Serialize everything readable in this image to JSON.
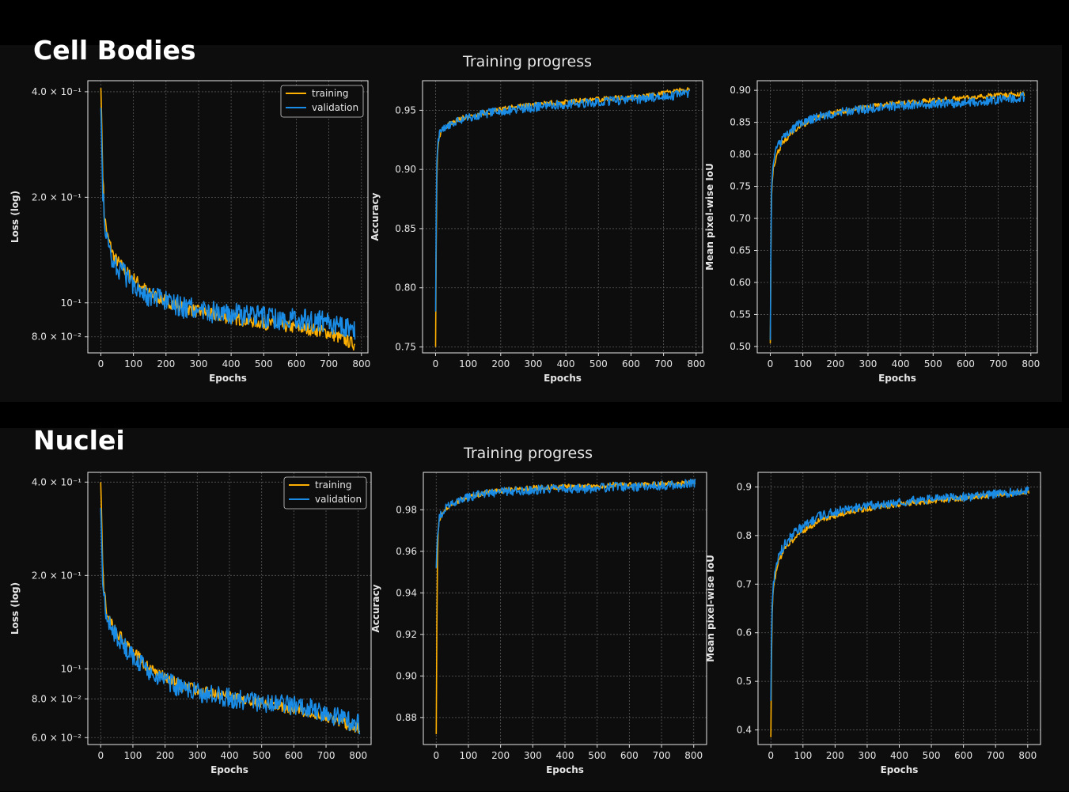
{
  "sections": [
    {
      "id": "cell",
      "heading": "Cell Bodies",
      "figure_title": "Training progress",
      "legend": {
        "training": "training",
        "validation": "validation"
      }
    },
    {
      "id": "nuc",
      "heading": "Nuclei",
      "figure_title": "Training progress",
      "legend": {
        "training": "training",
        "validation": "validation"
      }
    }
  ],
  "colors": {
    "training": "#ffb000",
    "validation": "#1a8ce6",
    "background": "#0d0d0d",
    "grid": "#5a5a5a"
  },
  "chart_data": [
    {
      "type": "line",
      "scale": "log",
      "xlabel": "Epochs",
      "ylabel": "Loss (log)",
      "xlim": [
        -40,
        820
      ],
      "ylim": [
        0.072,
        0.43
      ],
      "xticks": [
        0,
        100,
        200,
        300,
        400,
        500,
        600,
        700,
        800
      ],
      "yticks": [
        {
          "v": 0.4,
          "label": "4.0 × 10⁻¹"
        },
        {
          "v": 0.2,
          "label": "2.0 × 10⁻¹"
        },
        {
          "v": 0.1,
          "label": "10⁻¹"
        },
        {
          "v": 0.08,
          "label": "8.0 × 10⁻²"
        }
      ],
      "legend": "top-right",
      "grid": true,
      "series": [
        {
          "name": "training",
          "x": [
            0,
            5,
            10,
            20,
            40,
            80,
            150,
            250,
            350,
            450,
            550,
            650,
            700,
            780
          ],
          "y": [
            0.41,
            0.25,
            0.18,
            0.155,
            0.135,
            0.122,
            0.106,
            0.097,
            0.092,
            0.089,
            0.086,
            0.084,
            0.082,
            0.076
          ]
        },
        {
          "name": "validation",
          "x": [
            0,
            5,
            10,
            20,
            40,
            80,
            150,
            250,
            350,
            450,
            550,
            650,
            700,
            780
          ],
          "y": [
            0.36,
            0.22,
            0.17,
            0.148,
            0.13,
            0.118,
            0.104,
            0.097,
            0.094,
            0.092,
            0.09,
            0.089,
            0.088,
            0.084
          ]
        }
      ]
    },
    {
      "type": "line",
      "xlabel": "Epochs",
      "ylabel": "Accuracy",
      "xlim": [
        -40,
        820
      ],
      "ylim": [
        0.745,
        0.975
      ],
      "xticks": [
        0,
        100,
        200,
        300,
        400,
        500,
        600,
        700,
        800
      ],
      "yticks": [
        {
          "v": 0.75,
          "label": "0.75"
        },
        {
          "v": 0.8,
          "label": "0.80"
        },
        {
          "v": 0.85,
          "label": "0.85"
        },
        {
          "v": 0.9,
          "label": "0.90"
        },
        {
          "v": 0.95,
          "label": "0.95"
        }
      ],
      "grid": true,
      "series": [
        {
          "name": "training",
          "x": [
            0,
            3,
            6,
            10,
            20,
            40,
            80,
            150,
            250,
            350,
            450,
            550,
            650,
            780
          ],
          "y": [
            0.75,
            0.88,
            0.915,
            0.925,
            0.933,
            0.938,
            0.943,
            0.948,
            0.953,
            0.956,
            0.958,
            0.96,
            0.962,
            0.968
          ]
        },
        {
          "name": "validation",
          "x": [
            0,
            3,
            6,
            10,
            20,
            40,
            80,
            150,
            250,
            350,
            450,
            550,
            650,
            780
          ],
          "y": [
            0.78,
            0.9,
            0.92,
            0.928,
            0.934,
            0.938,
            0.942,
            0.947,
            0.951,
            0.954,
            0.956,
            0.958,
            0.96,
            0.964
          ]
        }
      ]
    },
    {
      "type": "line",
      "xlabel": "Epochs",
      "ylabel": "Mean pixel-wise IoU",
      "xlim": [
        -40,
        820
      ],
      "ylim": [
        0.49,
        0.915
      ],
      "xticks": [
        0,
        100,
        200,
        300,
        400,
        500,
        600,
        700,
        800
      ],
      "yticks": [
        {
          "v": 0.5,
          "label": "0.50"
        },
        {
          "v": 0.55,
          "label": "0.55"
        },
        {
          "v": 0.6,
          "label": "0.60"
        },
        {
          "v": 0.65,
          "label": "0.65"
        },
        {
          "v": 0.7,
          "label": "0.70"
        },
        {
          "v": 0.75,
          "label": "0.75"
        },
        {
          "v": 0.8,
          "label": "0.80"
        },
        {
          "v": 0.85,
          "label": "0.85"
        },
        {
          "v": 0.9,
          "label": "0.90"
        }
      ],
      "grid": true,
      "series": [
        {
          "name": "training",
          "x": [
            0,
            3,
            6,
            10,
            20,
            40,
            80,
            150,
            250,
            350,
            450,
            550,
            650,
            780
          ],
          "y": [
            0.505,
            0.72,
            0.76,
            0.78,
            0.8,
            0.82,
            0.84,
            0.86,
            0.87,
            0.878,
            0.882,
            0.886,
            0.89,
            0.895
          ]
        },
        {
          "name": "validation",
          "x": [
            0,
            3,
            6,
            10,
            20,
            40,
            80,
            150,
            250,
            350,
            450,
            550,
            650,
            780
          ],
          "y": [
            0.51,
            0.73,
            0.77,
            0.79,
            0.81,
            0.825,
            0.845,
            0.86,
            0.868,
            0.874,
            0.878,
            0.88,
            0.882,
            0.89
          ]
        }
      ]
    },
    {
      "type": "line",
      "scale": "log",
      "xlabel": "Epochs",
      "ylabel": "Loss (log)",
      "xlim": [
        -40,
        840
      ],
      "ylim": [
        0.057,
        0.43
      ],
      "xticks": [
        0,
        100,
        200,
        300,
        400,
        500,
        600,
        700,
        800
      ],
      "yticks": [
        {
          "v": 0.4,
          "label": "4.0 × 10⁻¹"
        },
        {
          "v": 0.2,
          "label": "2.0 × 10⁻¹"
        },
        {
          "v": 0.1,
          "label": "10⁻¹"
        },
        {
          "v": 0.08,
          "label": "8.0 × 10⁻²"
        },
        {
          "v": 0.06,
          "label": "6.0 × 10⁻²"
        }
      ],
      "legend": "top-right",
      "grid": true,
      "series": [
        {
          "name": "training",
          "x": [
            0,
            5,
            10,
            20,
            40,
            80,
            150,
            250,
            350,
            450,
            550,
            650,
            700,
            805
          ],
          "y": [
            0.4,
            0.24,
            0.18,
            0.15,
            0.135,
            0.12,
            0.1,
            0.088,
            0.083,
            0.08,
            0.076,
            0.072,
            0.07,
            0.064
          ]
        },
        {
          "name": "validation",
          "x": [
            0,
            5,
            10,
            20,
            40,
            80,
            150,
            250,
            350,
            450,
            550,
            650,
            700,
            805
          ],
          "y": [
            0.33,
            0.21,
            0.17,
            0.145,
            0.13,
            0.115,
            0.097,
            0.086,
            0.082,
            0.079,
            0.077,
            0.075,
            0.072,
            0.066
          ]
        }
      ]
    },
    {
      "type": "line",
      "xlabel": "Epochs",
      "ylabel": "Accuracy",
      "xlim": [
        -40,
        840
      ],
      "ylim": [
        0.867,
        0.998
      ],
      "xticks": [
        0,
        100,
        200,
        300,
        400,
        500,
        600,
        700,
        800
      ],
      "yticks": [
        {
          "v": 0.88,
          "label": "0.88"
        },
        {
          "v": 0.9,
          "label": "0.90"
        },
        {
          "v": 0.92,
          "label": "0.92"
        },
        {
          "v": 0.94,
          "label": "0.94"
        },
        {
          "v": 0.96,
          "label": "0.96"
        },
        {
          "v": 0.98,
          "label": "0.98"
        }
      ],
      "grid": true,
      "series": [
        {
          "name": "training",
          "x": [
            0,
            3,
            6,
            10,
            20,
            40,
            80,
            150,
            250,
            350,
            450,
            550,
            650,
            805
          ],
          "y": [
            0.872,
            0.95,
            0.97,
            0.975,
            0.979,
            0.982,
            0.985,
            0.988,
            0.99,
            0.991,
            0.991,
            0.992,
            0.992,
            0.993
          ]
        },
        {
          "name": "validation",
          "x": [
            0,
            3,
            6,
            10,
            20,
            40,
            80,
            150,
            250,
            350,
            450,
            550,
            650,
            805
          ],
          "y": [
            0.952,
            0.965,
            0.972,
            0.976,
            0.979,
            0.982,
            0.985,
            0.988,
            0.989,
            0.99,
            0.99,
            0.991,
            0.991,
            0.993
          ]
        }
      ]
    },
    {
      "type": "line",
      "xlabel": "Epochs",
      "ylabel": "Mean pixel-wise IoU",
      "xlim": [
        -40,
        840
      ],
      "ylim": [
        0.37,
        0.93
      ],
      "xticks": [
        0,
        100,
        200,
        300,
        400,
        500,
        600,
        700,
        800
      ],
      "yticks": [
        {
          "v": 0.4,
          "label": "0.4"
        },
        {
          "v": 0.5,
          "label": "0.5"
        },
        {
          "v": 0.6,
          "label": "0.6"
        },
        {
          "v": 0.7,
          "label": "0.7"
        },
        {
          "v": 0.8,
          "label": "0.8"
        },
        {
          "v": 0.9,
          "label": "0.9"
        }
      ],
      "grid": true,
      "series": [
        {
          "name": "training",
          "x": [
            0,
            3,
            6,
            10,
            20,
            40,
            80,
            150,
            250,
            350,
            450,
            550,
            650,
            805
          ],
          "y": [
            0.385,
            0.62,
            0.68,
            0.7,
            0.74,
            0.77,
            0.8,
            0.83,
            0.85,
            0.86,
            0.868,
            0.874,
            0.88,
            0.89
          ]
        },
        {
          "name": "validation",
          "x": [
            0,
            3,
            6,
            10,
            20,
            40,
            80,
            150,
            250,
            350,
            450,
            550,
            650,
            805
          ],
          "y": [
            0.46,
            0.64,
            0.69,
            0.71,
            0.75,
            0.78,
            0.81,
            0.84,
            0.857,
            0.865,
            0.872,
            0.877,
            0.882,
            0.892
          ]
        }
      ]
    }
  ]
}
